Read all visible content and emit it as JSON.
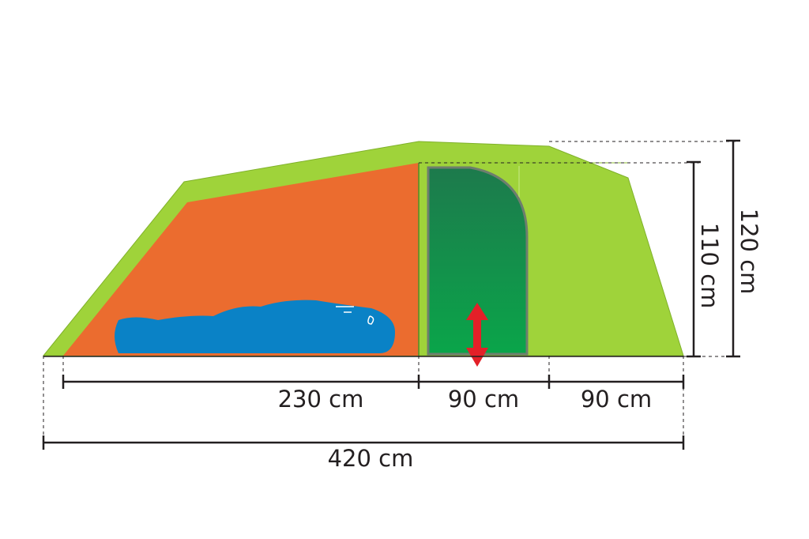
{
  "dimensions": {
    "horizontal": [
      "230 cm",
      "90 cm",
      "90 cm",
      "420 cm"
    ],
    "vertical": [
      "110 cm",
      "120 cm"
    ]
  }
}
